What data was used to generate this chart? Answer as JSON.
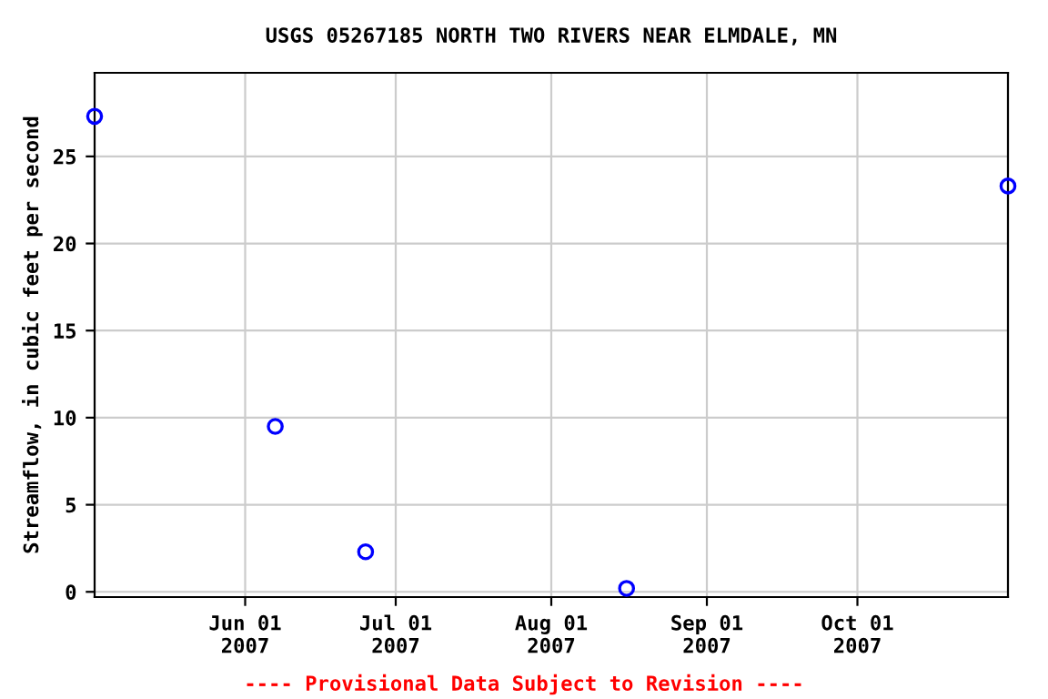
{
  "chart_data": {
    "type": "scatter",
    "title": "USGS 05267185 NORTH TWO RIVERS NEAR ELMDALE, MN",
    "ylabel": "Streamflow, in cubic feet per second",
    "x": [
      "2007-05-02",
      "2007-06-07",
      "2007-06-25",
      "2007-08-16",
      "2007-10-31"
    ],
    "series": [
      {
        "color": "#0000ff",
        "values": [
          27.3,
          9.5,
          2.3,
          0.2,
          23.3
        ]
      }
    ],
    "xlim": [
      "2007-05-02",
      "2007-10-31"
    ],
    "xticks": [
      {
        "value": "2007-06-01",
        "label": "Jun 01\n2007"
      },
      {
        "value": "2007-07-01",
        "label": "Jul 01\n2007"
      },
      {
        "value": "2007-08-01",
        "label": "Aug 01\n2007"
      },
      {
        "value": "2007-09-01",
        "label": "Sep 01\n2007"
      },
      {
        "value": "2007-10-01",
        "label": "Oct 01\n2007"
      }
    ],
    "ylim": [
      -0.3,
      29.8
    ],
    "yticks": [
      0,
      5,
      10,
      15,
      20,
      25
    ],
    "grid": true,
    "marker": "circle",
    "annotations": [
      "---- Provisional Data Subject to Revision ----"
    ]
  }
}
